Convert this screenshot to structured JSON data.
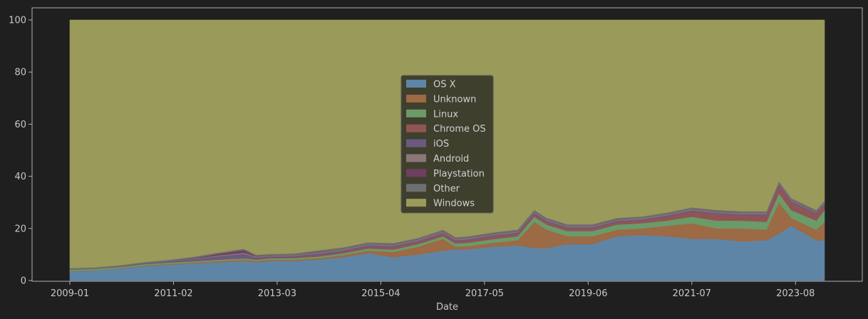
{
  "chart_data": {
    "type": "area",
    "stacked": true,
    "xlabel": "Date",
    "ylabel": "",
    "ylim": [
      0,
      100
    ],
    "yticks": [
      0,
      20,
      40,
      60,
      80,
      100
    ],
    "xticks": [
      "2009-01",
      "2011-02",
      "2013-03",
      "2015-04",
      "2017-05",
      "2019-06",
      "2021-07",
      "2023-08"
    ],
    "xrange": [
      "2009-01",
      "2024-03"
    ],
    "legend_position": "center",
    "grid": false,
    "x": [
      "2009-01",
      "2009-07",
      "2010-01",
      "2010-07",
      "2011-01",
      "2011-07",
      "2012-01",
      "2012-07",
      "2012-10",
      "2013-01",
      "2013-07",
      "2014-01",
      "2014-07",
      "2015-01",
      "2015-07",
      "2016-01",
      "2016-07",
      "2016-10",
      "2017-01",
      "2017-07",
      "2018-01",
      "2018-05",
      "2018-08",
      "2019-01",
      "2019-07",
      "2020-01",
      "2020-07",
      "2021-01",
      "2021-07",
      "2022-01",
      "2022-07",
      "2023-01",
      "2023-04",
      "2023-07",
      "2024-01",
      "2024-03"
    ],
    "series": [
      {
        "name": "OS X",
        "color": "#5f85a6",
        "values": [
          3.5,
          3.8,
          4.5,
          5.5,
          6.0,
          6.5,
          7.0,
          7.5,
          7.0,
          7.5,
          7.5,
          8.0,
          9.0,
          10.5,
          9.0,
          10.0,
          11.5,
          12.0,
          12.0,
          13.0,
          13.5,
          12.5,
          12.5,
          14.0,
          14.0,
          17.0,
          17.5,
          17.0,
          16.0,
          16.0,
          15.0,
          15.5,
          18.0,
          21.0,
          15.5,
          15.5
        ]
      },
      {
        "name": "Unknown",
        "color": "#9c6a44",
        "values": [
          0.2,
          0.2,
          0.2,
          0.3,
          0.4,
          0.4,
          0.5,
          0.5,
          0.5,
          0.5,
          0.5,
          0.6,
          0.8,
          1.0,
          2.0,
          3.0,
          4.5,
          1.0,
          1.2,
          1.5,
          2.0,
          10.0,
          7.0,
          3.0,
          3.0,
          2.5,
          2.5,
          4.0,
          6.0,
          4.0,
          5.0,
          4.0,
          12.0,
          3.0,
          4.0,
          7.0
        ]
      },
      {
        "name": "Linux",
        "color": "#6b9b68",
        "values": [
          0.5,
          0.5,
          0.5,
          0.5,
          0.5,
          0.5,
          0.5,
          0.5,
          0.5,
          0.5,
          0.6,
          0.6,
          0.7,
          0.8,
          0.9,
          1.0,
          1.0,
          1.2,
          1.3,
          1.4,
          1.5,
          2.0,
          2.0,
          2.0,
          2.0,
          2.0,
          2.0,
          2.0,
          2.5,
          3.0,
          3.0,
          3.0,
          3.5,
          3.0,
          3.5,
          4.5
        ]
      },
      {
        "name": "Chrome OS",
        "color": "#8f5555",
        "values": [
          0.0,
          0.0,
          0.0,
          0.0,
          0.0,
          0.1,
          0.2,
          0.3,
          0.3,
          0.3,
          0.4,
          0.5,
          0.6,
          0.7,
          0.8,
          0.8,
          0.9,
          0.9,
          0.9,
          1.0,
          1.0,
          1.0,
          1.0,
          1.0,
          1.0,
          1.0,
          1.0,
          1.5,
          2.0,
          2.5,
          2.0,
          2.5,
          3.0,
          3.0,
          2.5,
          2.0
        ]
      },
      {
        "name": "iOS",
        "color": "#6a5a80",
        "values": [
          0.1,
          0.1,
          0.2,
          0.3,
          0.5,
          0.8,
          1.2,
          1.5,
          0.6,
          0.5,
          0.5,
          0.7,
          0.6,
          0.6,
          0.6,
          0.5,
          0.5,
          0.5,
          0.5,
          0.5,
          0.5,
          0.5,
          0.5,
          0.5,
          0.5,
          0.5,
          0.5,
          0.5,
          0.5,
          0.5,
          0.5,
          0.5,
          0.5,
          0.5,
          0.5,
          0.5
        ]
      },
      {
        "name": "Android",
        "color": "#8c7878",
        "values": [
          0.0,
          0.0,
          0.0,
          0.0,
          0.1,
          0.2,
          0.3,
          0.4,
          0.3,
          0.3,
          0.3,
          0.4,
          0.4,
          0.4,
          0.4,
          0.4,
          0.4,
          0.4,
          0.4,
          0.4,
          0.4,
          0.4,
          0.4,
          0.4,
          0.4,
          0.4,
          0.4,
          0.4,
          0.4,
          0.4,
          0.4,
          0.4,
          0.4,
          0.4,
          0.4,
          0.4
        ]
      },
      {
        "name": "Playstation",
        "color": "#6e3f60",
        "values": [
          0.0,
          0.0,
          0.0,
          0.0,
          0.0,
          0.2,
          0.6,
          1.0,
          0.2,
          0.1,
          0.1,
          0.2,
          0.1,
          0.1,
          0.1,
          0.1,
          0.1,
          0.1,
          0.1,
          0.1,
          0.1,
          0.1,
          0.1,
          0.1,
          0.1,
          0.1,
          0.1,
          0.1,
          0.1,
          0.1,
          0.1,
          0.1,
          0.1,
          0.1,
          0.1,
          0.1
        ]
      },
      {
        "name": "Other",
        "color": "#6f6f6f",
        "values": [
          0.5,
          0.5,
          0.5,
          0.5,
          0.5,
          0.5,
          0.5,
          0.5,
          0.5,
          0.5,
          0.5,
          0.6,
          0.6,
          0.6,
          0.6,
          0.6,
          0.6,
          0.6,
          0.6,
          0.6,
          0.6,
          0.6,
          0.6,
          0.6,
          0.6,
          0.6,
          0.6,
          0.6,
          0.6,
          0.6,
          0.6,
          0.6,
          0.6,
          0.6,
          0.6,
          0.6
        ]
      },
      {
        "name": "Windows",
        "color": "#9a9a5a",
        "values": "remainder-to-100"
      }
    ]
  },
  "colors": {
    "background": "#1f1f1f",
    "axes_frame": "#b0b0b0",
    "legend_bg": "#3a3a2c",
    "legend_edge": "#555555"
  }
}
